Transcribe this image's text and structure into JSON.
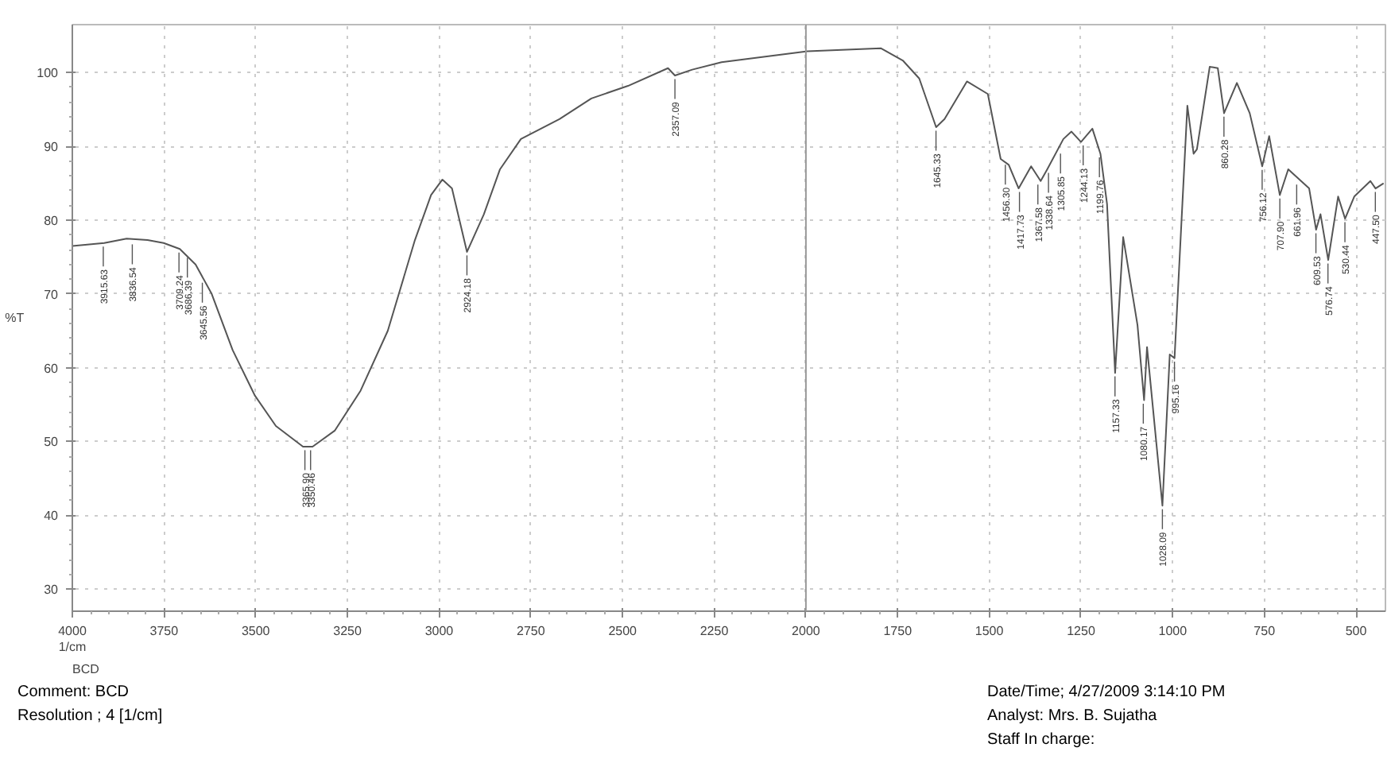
{
  "chart_data": {
    "type": "line",
    "xlabel": "1/cm",
    "ylabel": "%T",
    "xlim": [
      4000,
      420
    ],
    "ylim": [
      27,
      106.5
    ],
    "xticks": [
      4000,
      3750,
      3500,
      3250,
      3000,
      2750,
      2500,
      2250,
      2000,
      1750,
      1500,
      1250,
      1000,
      750,
      500
    ],
    "yticks": [
      30,
      40,
      50,
      60,
      70,
      80,
      90,
      100
    ],
    "grid": true,
    "marker": "none",
    "line_style": "solid",
    "ref_lines": [
      {
        "axis": "x",
        "value": 2000,
        "color": "#999999",
        "line_style": "solid"
      }
    ],
    "series": [
      {
        "color": "#555555",
        "x": [
          4000,
          3913,
          3852,
          3795,
          3751,
          3707,
          3664,
          3620,
          3563,
          3502,
          3445,
          3371,
          3345,
          3284,
          3214,
          3140,
          3066,
          3022,
          2991,
          2965,
          2924,
          2878,
          2834,
          2777,
          2672,
          2585,
          2485,
          2376,
          2357,
          2310,
          2230,
          1996,
          1796,
          1735,
          1691,
          1645,
          1622,
          1561,
          1504,
          1469,
          1447,
          1420,
          1386,
          1360,
          1342,
          1298,
          1276,
          1250,
          1219,
          1197,
          1179,
          1157,
          1135,
          1096,
          1078,
          1070,
          1028,
          1008,
          995,
          960,
          943,
          934,
          899,
          877,
          860,
          825,
          790,
          756,
          737,
          708,
          685,
          650,
          628,
          609,
          597,
          576,
          549,
          530,
          505,
          461,
          447,
          425
        ],
        "values": [
          76.5,
          76.9,
          77.5,
          77.3,
          76.9,
          76.1,
          74,
          70,
          62.4,
          56.2,
          52.1,
          49.3,
          49.3,
          51.5,
          56.9,
          65,
          77.3,
          83.4,
          85.5,
          84.3,
          75.7,
          80.8,
          86.9,
          91,
          93.7,
          96.5,
          98.2,
          100.6,
          99.6,
          100.4,
          101.4,
          102.9,
          103.3,
          101.6,
          99.2,
          92.6,
          93.7,
          98.8,
          97.1,
          88.3,
          87.5,
          84.3,
          87.3,
          85.3,
          86.9,
          91,
          92,
          90.6,
          92.4,
          89,
          82.2,
          59.3,
          77.7,
          65.8,
          55.6,
          62.8,
          41.3,
          61.8,
          61.3,
          95.5,
          89,
          89.6,
          100.8,
          100.6,
          94.5,
          98.6,
          94.5,
          87.3,
          91.4,
          83.4,
          86.9,
          85.3,
          84.3,
          78.7,
          80.8,
          74.6,
          83.2,
          80.2,
          83.2,
          85.3,
          84.3,
          85
        ]
      }
    ],
    "annotations": [
      {
        "text": "3915.63",
        "x": 3915.63,
        "y": 76.9
      },
      {
        "text": "3836.54",
        "x": 3836.54,
        "y": 77.2
      },
      {
        "text": "3709.24",
        "x": 3709.24,
        "y": 76.1
      },
      {
        "text": "3686.39",
        "x": 3686.39,
        "y": 75.4
      },
      {
        "text": "3645.56",
        "x": 3645.56,
        "y": 72
      },
      {
        "text": "3365.90",
        "x": 3365.9,
        "y": 49.3
      },
      {
        "text": "3350.46",
        "x": 3350.46,
        "y": 49.3
      },
      {
        "text": "2924.18",
        "x": 2924.18,
        "y": 75.7
      },
      {
        "text": "2357.09",
        "x": 2357.09,
        "y": 99.6
      },
      {
        "text": "1645.33",
        "x": 1645.33,
        "y": 92.6
      },
      {
        "text": "1456.30",
        "x": 1456.3,
        "y": 88
      },
      {
        "text": "1417.73",
        "x": 1417.73,
        "y": 84.3
      },
      {
        "text": "1367.58",
        "x": 1367.58,
        "y": 85.3
      },
      {
        "text": "1338.64",
        "x": 1338.64,
        "y": 86.9
      },
      {
        "text": "1305.85",
        "x": 1305.85,
        "y": 89.5
      },
      {
        "text": "1244.13",
        "x": 1244.13,
        "y": 90.6
      },
      {
        "text": "1199.76",
        "x": 1199.76,
        "y": 89
      },
      {
        "text": "1157.33",
        "x": 1157.33,
        "y": 59.3
      },
      {
        "text": "1080.17",
        "x": 1080.17,
        "y": 55.6
      },
      {
        "text": "1028.09",
        "x": 1028.09,
        "y": 41.3
      },
      {
        "text": "995.16",
        "x": 995.16,
        "y": 61.3
      },
      {
        "text": "860.28",
        "x": 860.28,
        "y": 94.5
      },
      {
        "text": "756.12",
        "x": 756.12,
        "y": 87.3
      },
      {
        "text": "707.90",
        "x": 707.9,
        "y": 83.4
      },
      {
        "text": "661.96",
        "x": 661.96,
        "y": 85.3
      },
      {
        "text": "609.53",
        "x": 609.53,
        "y": 78.7
      },
      {
        "text": "576.74",
        "x": 576.74,
        "y": 74.6
      },
      {
        "text": "530.44",
        "x": 530.44,
        "y": 80.2
      },
      {
        "text": "447.50",
        "x": 447.5,
        "y": 84.3
      },
      "BCD",
      "Comment: BCD",
      "Resolution ;   4 [1/cm]",
      "Date/Time; 4/27/2009 3:14:10 PM",
      "Analyst: Mrs. B. Sujatha",
      "Staff In charge:"
    ]
  }
}
